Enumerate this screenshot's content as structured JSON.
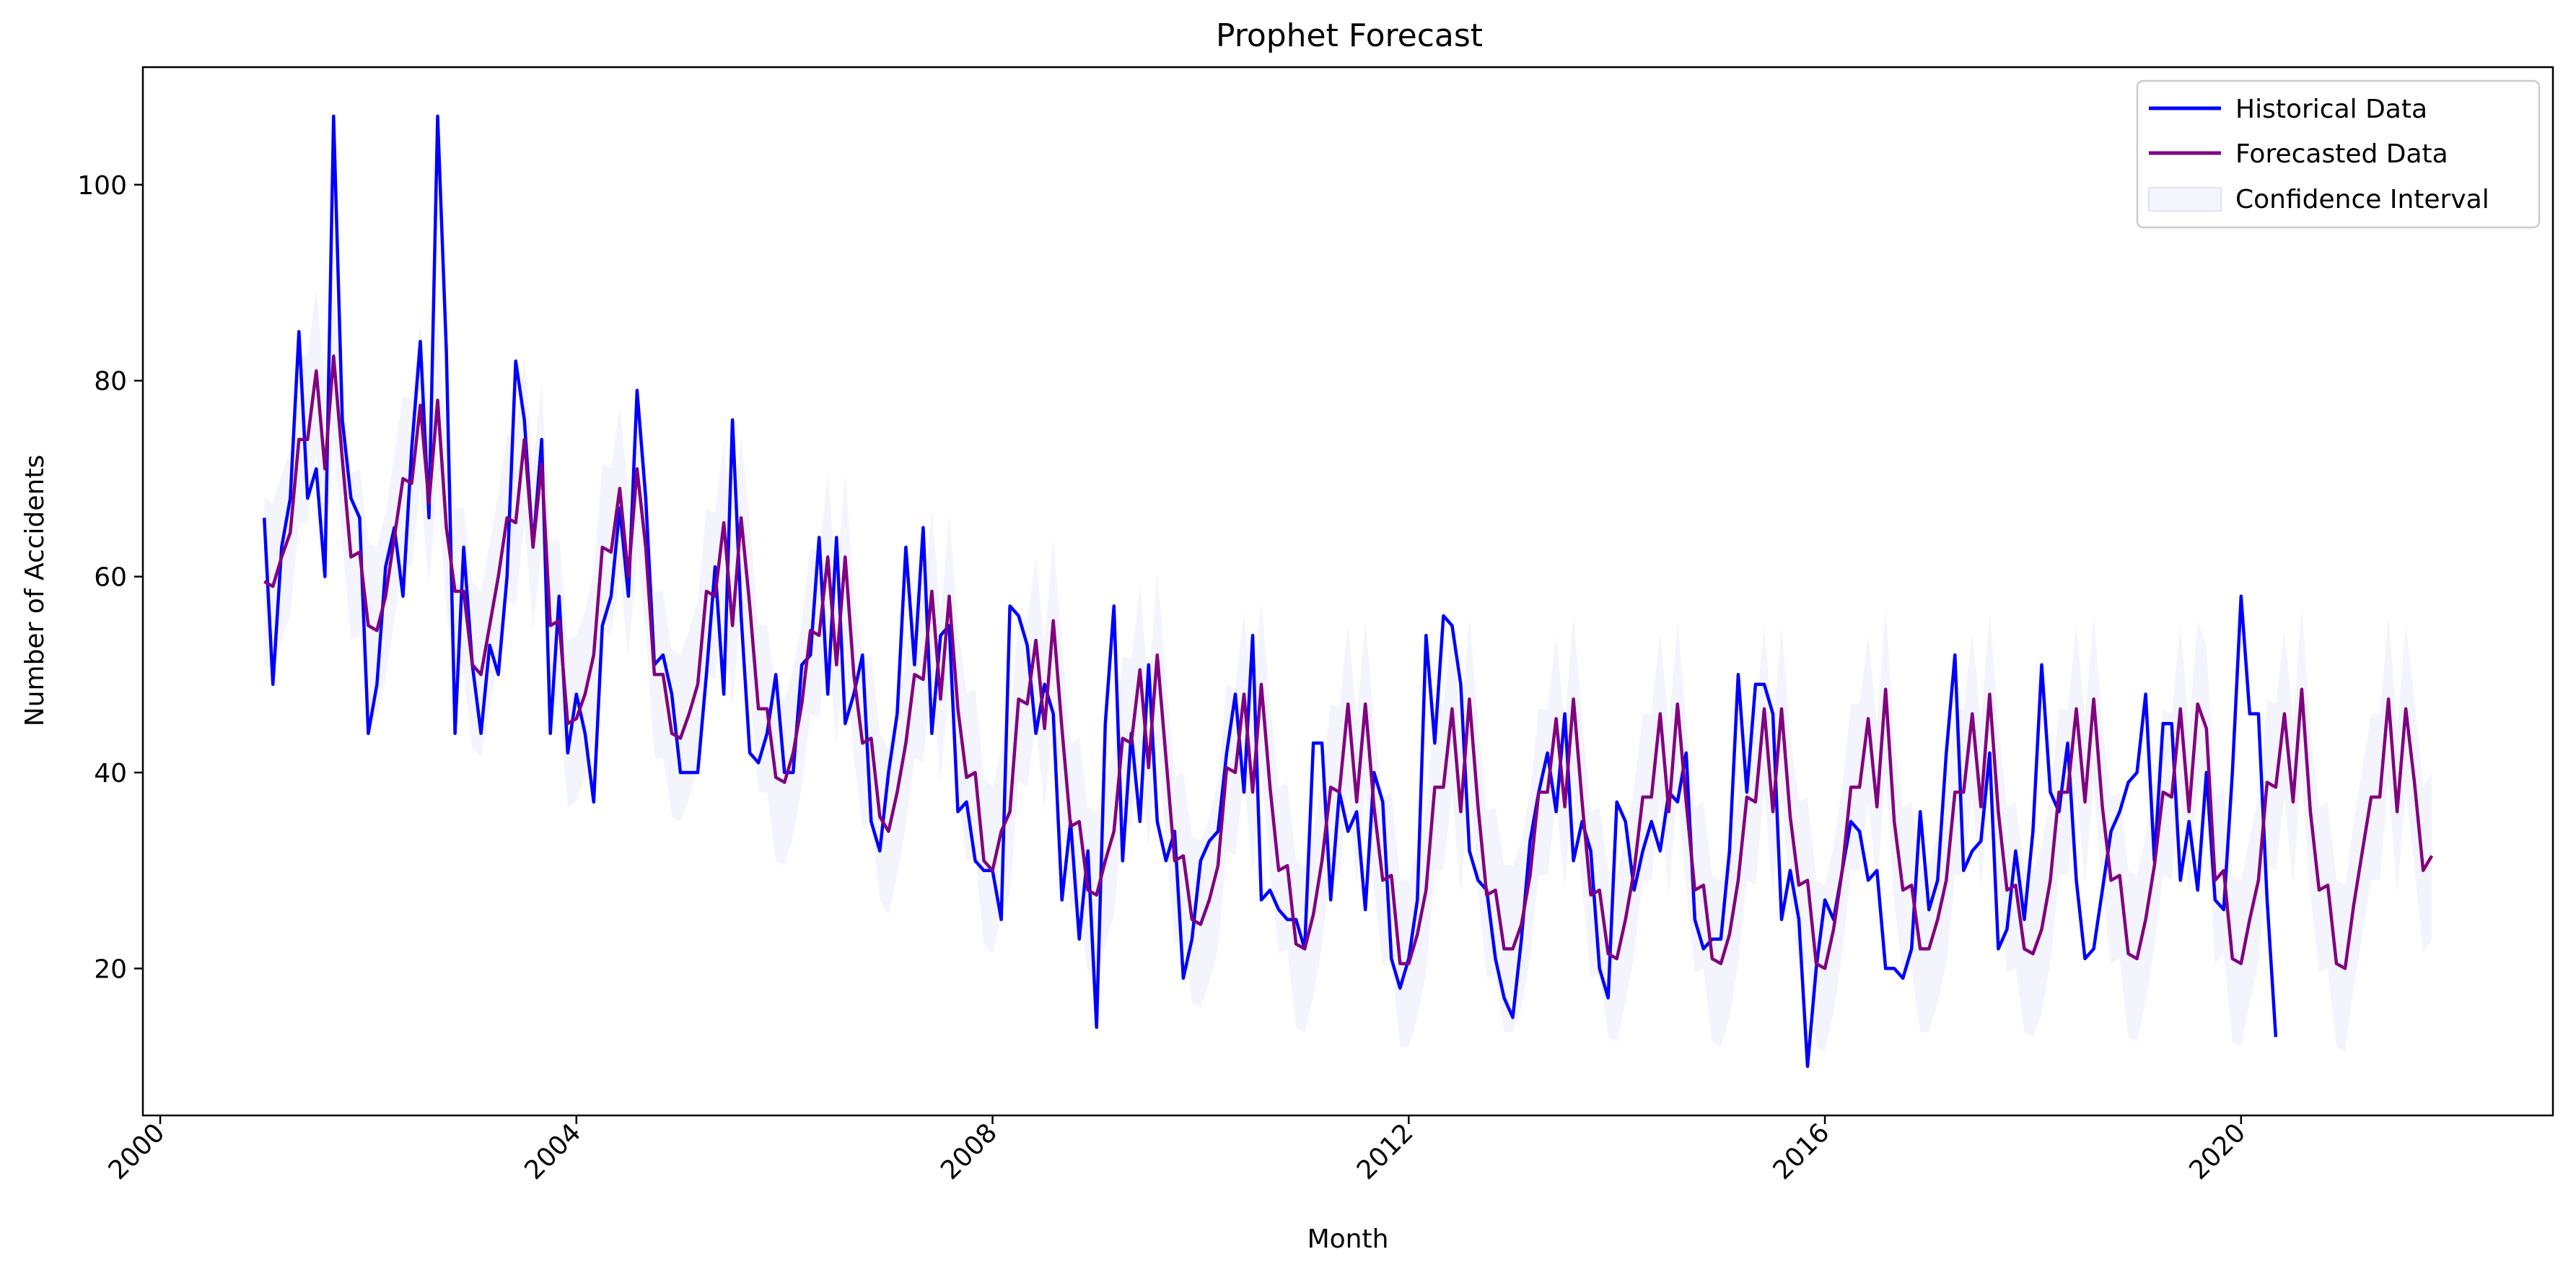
{
  "chart_data": {
    "type": "line",
    "title": "Prophet Forecast",
    "xlabel": "Month",
    "ylabel": "Number of Accidents",
    "xlim": [
      "1999-11-01",
      "2022-12-31"
    ],
    "ylim": [
      5,
      112
    ],
    "x_ticks": [
      "2000",
      "2004",
      "2008",
      "2012",
      "2016",
      "2020"
    ],
    "y_ticks": [
      "20",
      "40",
      "60",
      "80",
      "100"
    ],
    "x_tick_rotation_deg": 45,
    "grid": false,
    "legend_position": "top-right",
    "start_date": "2001-01",
    "series": [
      {
        "name": "Historical Data",
        "color": "#0000ff",
        "values": [
          66,
          49,
          63,
          68,
          85,
          68,
          71,
          60,
          107,
          76,
          68,
          66,
          44,
          49,
          61,
          65,
          58,
          73,
          84,
          66,
          107,
          83,
          44,
          63,
          51,
          44,
          53,
          50,
          60,
          82,
          76,
          63,
          74,
          44,
          58,
          42,
          48,
          44,
          37,
          55,
          58,
          67,
          58,
          79,
          68,
          51,
          52,
          48,
          40,
          40,
          40,
          50,
          61,
          48,
          76,
          56,
          42,
          41,
          44,
          50,
          40,
          40,
          51,
          52,
          64,
          48,
          64,
          45,
          48,
          52,
          35,
          32,
          40,
          46,
          63,
          51,
          65,
          44,
          54,
          55,
          36,
          37,
          31,
          30,
          30,
          25,
          57,
          56,
          53,
          44,
          49,
          46,
          27,
          35,
          23,
          32,
          14,
          45,
          57,
          31,
          44,
          35,
          51,
          35,
          31,
          34,
          19,
          23,
          31,
          33,
          34,
          42,
          48,
          38,
          54,
          27,
          28,
          26,
          25,
          25,
          22,
          43,
          43,
          27,
          38,
          34,
          36,
          26,
          40,
          37,
          21,
          18,
          21,
          27,
          54,
          43,
          56,
          55,
          49,
          32,
          29,
          28,
          21,
          17,
          15,
          23,
          33,
          38,
          42,
          36,
          46,
          31,
          35,
          32,
          20,
          17,
          37,
          35,
          28,
          32,
          35,
          32,
          38,
          37,
          42,
          25,
          22,
          23,
          23,
          32,
          50,
          38,
          49,
          49,
          46,
          25,
          30,
          25,
          10,
          20,
          27,
          25,
          30,
          35,
          34,
          29,
          30,
          20,
          20,
          19,
          22,
          36,
          26,
          29,
          42,
          52,
          30,
          32,
          33,
          42,
          22,
          24,
          32,
          25,
          34,
          51,
          38,
          36,
          43,
          29,
          21,
          22,
          28,
          34,
          36,
          39,
          40,
          48,
          31,
          45,
          45,
          29,
          35,
          28,
          40,
          27,
          26,
          40,
          58,
          46,
          46,
          27,
          13
        ]
      },
      {
        "name": "Forecasted Data",
        "color": "#800080",
        "values": [
          59.5,
          59,
          62,
          64.5,
          74,
          74,
          81,
          71,
          82.5,
          72,
          62,
          62.5,
          55,
          54.5,
          58,
          64,
          70,
          69.5,
          77.5,
          67.5,
          78,
          65,
          58.5,
          58.5,
          51,
          50,
          55,
          60,
          66,
          65.5,
          74,
          63,
          71.5,
          55,
          55.5,
          45,
          45.5,
          48,
          52,
          63,
          62.5,
          69,
          60,
          71,
          63,
          50,
          50,
          44,
          43.5,
          46,
          49,
          58.5,
          58,
          65.5,
          55,
          66,
          57,
          46.5,
          46.5,
          39.5,
          39,
          42,
          47,
          54.5,
          54,
          62,
          51,
          62,
          50,
          43,
          43.5,
          35.5,
          34,
          38,
          43,
          50,
          49.5,
          58.5,
          47.5,
          58,
          46.5,
          39.5,
          40,
          31,
          30,
          34,
          36,
          47.5,
          47,
          53.5,
          44.5,
          55.5,
          44.5,
          34.5,
          35,
          28,
          27.5,
          31,
          34,
          43.5,
          43,
          50.5,
          40.5,
          52,
          41.5,
          31,
          31.5,
          25,
          24.5,
          27,
          30.5,
          40.5,
          40,
          48,
          38,
          49,
          38.5,
          30,
          30.5,
          22.5,
          22,
          25.5,
          31,
          38.5,
          38,
          47,
          37,
          47,
          36.5,
          29,
          29.5,
          20.5,
          20.5,
          23.5,
          28,
          38.5,
          38.5,
          46.5,
          36,
          47.5,
          36.5,
          27.5,
          28,
          22,
          22,
          24.5,
          29.5,
          38,
          38,
          45.5,
          36.5,
          47.5,
          37,
          27.5,
          28,
          21.5,
          21,
          25,
          30,
          37.5,
          37.5,
          46,
          36,
          47,
          37,
          28,
          28.5,
          21,
          20.5,
          23.5,
          29,
          37.5,
          37,
          46.5,
          36,
          46.5,
          35.5,
          28.5,
          29,
          20.5,
          20,
          24,
          30,
          38.5,
          38.5,
          45.5,
          36.5,
          48.5,
          35,
          28,
          28.5,
          22,
          22,
          25,
          29,
          38,
          38,
          46,
          36.5,
          48,
          36,
          28,
          28.5,
          22,
          21.5,
          24,
          29,
          38,
          38,
          46.5,
          37,
          47.5,
          36.5,
          29,
          29.5,
          21.5,
          21,
          25,
          30.5,
          38,
          37.5,
          46.5,
          36,
          47,
          44.5,
          29,
          30,
          21,
          20.5,
          25,
          29,
          39,
          38.5,
          46,
          37,
          48.5,
          36,
          28,
          28.5,
          20.5,
          20,
          26.5,
          32,
          37.5,
          37.5,
          47.5,
          36,
          46.5,
          39,
          30,
          31.5
        ]
      }
    ],
    "confidence_interval": {
      "name": "Confidence Interval",
      "color": "#e6e6fa",
      "half_width": 8.5
    }
  }
}
